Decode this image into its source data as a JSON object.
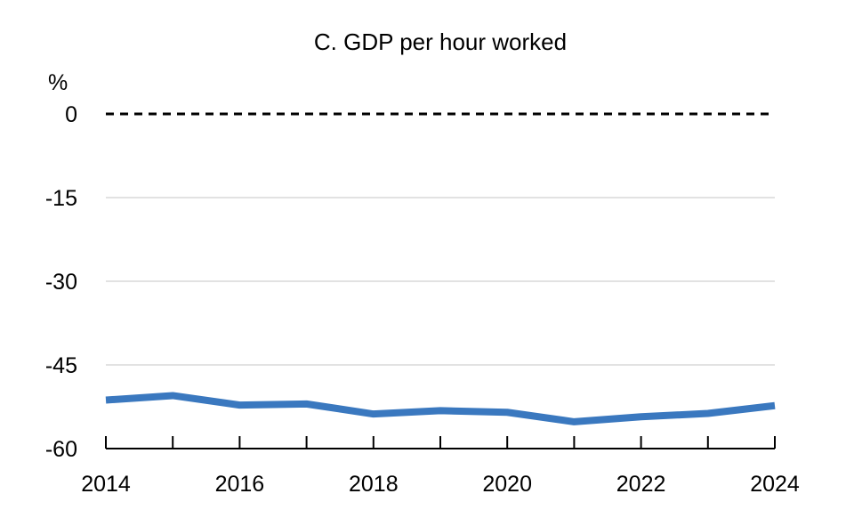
{
  "chart_data": {
    "type": "line",
    "title": "C. GDP per hour worked",
    "unit_label": "%",
    "x": [
      2014,
      2015,
      2016,
      2017,
      2018,
      2019,
      2020,
      2021,
      2022,
      2023,
      2024
    ],
    "x_tick_labels": [
      "2014",
      "2016",
      "2018",
      "2020",
      "2022",
      "2024"
    ],
    "y_tick_labels": [
      "0",
      "-15",
      "-30",
      "-45",
      "-60"
    ],
    "y_ticks": [
      0,
      -15,
      -30,
      -45,
      -60
    ],
    "ylim": [
      -60,
      0
    ],
    "xlim": [
      2014,
      2024
    ],
    "grid": true,
    "zero_line": "dashed",
    "series": [
      {
        "values": [
          -51.3,
          -50.5,
          -52.2,
          -52.0,
          -53.8,
          -53.2,
          -53.5,
          -55.2,
          -54.3,
          -53.7,
          -52.3
        ],
        "color": "#3a78bf"
      }
    ]
  }
}
